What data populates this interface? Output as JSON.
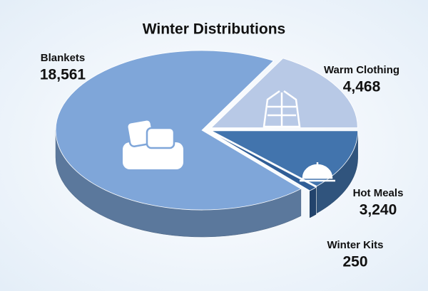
{
  "chart_data": {
    "type": "pie",
    "title": "Winter Distributions",
    "categories": [
      "Blankets",
      "Warm Clothing",
      "Hot Meals",
      "Winter Kits"
    ],
    "values": [
      18561,
      4468,
      3240,
      250
    ],
    "value_labels": [
      "18,561",
      "4,468",
      "3,240",
      "250"
    ],
    "colors": [
      "#7fa6d9",
      "#b8c9e6",
      "#4274ad",
      "#2f5d96"
    ]
  }
}
